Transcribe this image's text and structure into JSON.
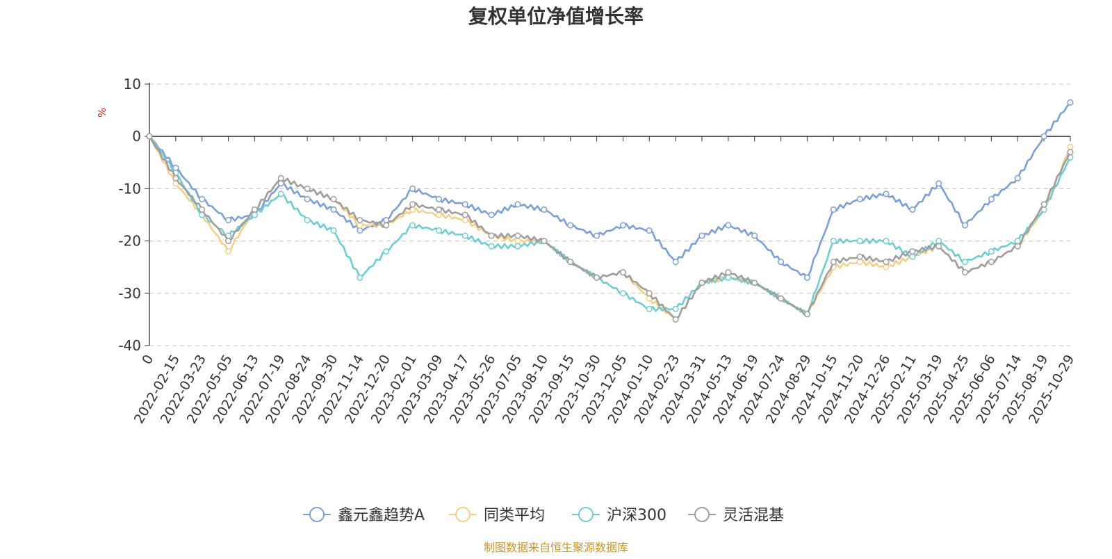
{
  "chart_data": {
    "type": "line",
    "title": "复权单位净值增长率",
    "ylabel": "%",
    "xlabel": "",
    "ylim": [
      -40,
      10
    ],
    "yticks": [
      10,
      0,
      -10,
      -20,
      -30,
      -40
    ],
    "grid": true,
    "legend_position": "bottom",
    "categories": [
      "0",
      "2022-02-15",
      "2022-03-23",
      "2022-05-05",
      "2022-06-13",
      "2022-07-19",
      "2022-08-24",
      "2022-09-30",
      "2022-11-14",
      "2022-12-20",
      "2023-02-01",
      "2023-03-09",
      "2023-04-17",
      "2023-05-26",
      "2023-07-05",
      "2023-08-10",
      "2023-09-15",
      "2023-10-30",
      "2023-12-05",
      "2024-01-10",
      "2024-02-23",
      "2024-03-31",
      "2024-05-13",
      "2024-06-19",
      "2024-07-24",
      "2024-08-29",
      "2024-10-15",
      "2024-11-20",
      "2024-12-26",
      "2025-02-11",
      "2025-03-19",
      "2025-04-25",
      "2025-06-06",
      "2025-07-14",
      "2025-08-19",
      "2025-10-29"
    ],
    "series": [
      {
        "name": "鑫元鑫趋势A",
        "color": "#7b9fd6",
        "values": [
          0,
          -6,
          -12,
          -16,
          -15,
          -9,
          -12,
          -14,
          -18,
          -16,
          -10,
          -12,
          -13,
          -15,
          -13,
          -14,
          -17,
          -19,
          -17,
          -18,
          -24,
          -19,
          -17,
          -19,
          -24,
          -27,
          -14,
          -12,
          -11,
          -14,
          -9,
          -17,
          -12,
          -8,
          0,
          6.5
        ]
      },
      {
        "name": "同类平均",
        "color": "#f5cf86",
        "values": [
          0,
          -9,
          -15,
          -22,
          -14,
          -8,
          -10,
          -12,
          -17,
          -17,
          -14,
          -15,
          -16,
          -19,
          -20,
          -20,
          -24,
          -27,
          -26,
          -31,
          -35,
          -28,
          -27,
          -28,
          -31,
          -34,
          -25,
          -24,
          -25,
          -23,
          -21,
          -26,
          -24,
          -21,
          -14,
          -2
        ]
      },
      {
        "name": "沪深300",
        "color": "#6fcdd2",
        "values": [
          0,
          -7,
          -15,
          -19,
          -15,
          -11,
          -16,
          -18,
          -27,
          -22,
          -17,
          -18,
          -19,
          -21,
          -21,
          -20,
          -24,
          -27,
          -30,
          -33,
          -33,
          -28,
          -27,
          -28,
          -31,
          -34,
          -20,
          -20,
          -20,
          -23,
          -20,
          -24,
          -22,
          -20,
          -14,
          -4
        ]
      },
      {
        "name": "灵活混基",
        "color": "#9e9e9e",
        "values": [
          0,
          -8,
          -14,
          -20,
          -14,
          -8,
          -10,
          -12,
          -16,
          -17,
          -13,
          -14,
          -15,
          -19,
          -19,
          -20,
          -24,
          -27,
          -26,
          -30,
          -35,
          -28,
          -26,
          -28,
          -31,
          -34,
          -24,
          -23,
          -24,
          -22,
          -21,
          -26,
          -24,
          -21,
          -13,
          -3
        ]
      }
    ]
  },
  "footer": {
    "source": "制图数据来自恒生聚源数据库"
  }
}
